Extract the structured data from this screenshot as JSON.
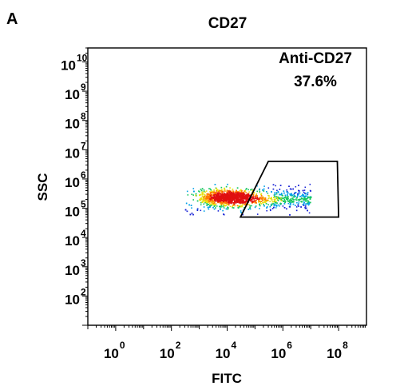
{
  "panel_label": "A",
  "chart_data": {
    "type": "scatter",
    "subtype": "flow-cytometry-density-plot",
    "title": "CD27",
    "xlabel": "FITC",
    "ylabel": "SSC",
    "x_scale": "log",
    "y_scale": "log",
    "xlim": [
      0.1,
      1000000000
    ],
    "ylim": [
      10,
      30000000000
    ],
    "x_ticks": [
      {
        "value": 1,
        "base": "10",
        "exp": "0"
      },
      {
        "value": 100,
        "base": "10",
        "exp": "2"
      },
      {
        "value": 10000,
        "base": "10",
        "exp": "4"
      },
      {
        "value": 1000000,
        "base": "10",
        "exp": "6"
      },
      {
        "value": 100000000,
        "base": "10",
        "exp": "8"
      }
    ],
    "y_ticks": [
      {
        "value": 100,
        "base": "10",
        "exp": "2"
      },
      {
        "value": 1000,
        "base": "10",
        "exp": "3"
      },
      {
        "value": 10000,
        "base": "10",
        "exp": "4"
      },
      {
        "value": 100000,
        "base": "10",
        "exp": "5"
      },
      {
        "value": 1000000,
        "base": "10",
        "exp": "6"
      },
      {
        "value": 10000000,
        "base": "10",
        "exp": "7"
      },
      {
        "value": 100000000,
        "base": "10",
        "exp": "8"
      },
      {
        "value": 1000000000,
        "base": "10",
        "exp": "9"
      },
      {
        "value": 10000000000,
        "base": "10",
        "exp": "10"
      }
    ],
    "population": {
      "x_range": [
        300,
        10000000
      ],
      "y_range": [
        60000,
        700000
      ],
      "densest_x": 10000,
      "densest_y": 250000
    },
    "gate": {
      "name": "Anti-CD27",
      "percent": "37.6%",
      "vertices": [
        [
          300000,
          4000000
        ],
        [
          90000000,
          4000000
        ],
        [
          100000000,
          50000
        ],
        [
          30000,
          50000
        ]
      ]
    },
    "density_colors": [
      "#1a24d6",
      "#00a0e8",
      "#18c860",
      "#e8e010",
      "#ff7a00",
      "#e01010"
    ]
  }
}
